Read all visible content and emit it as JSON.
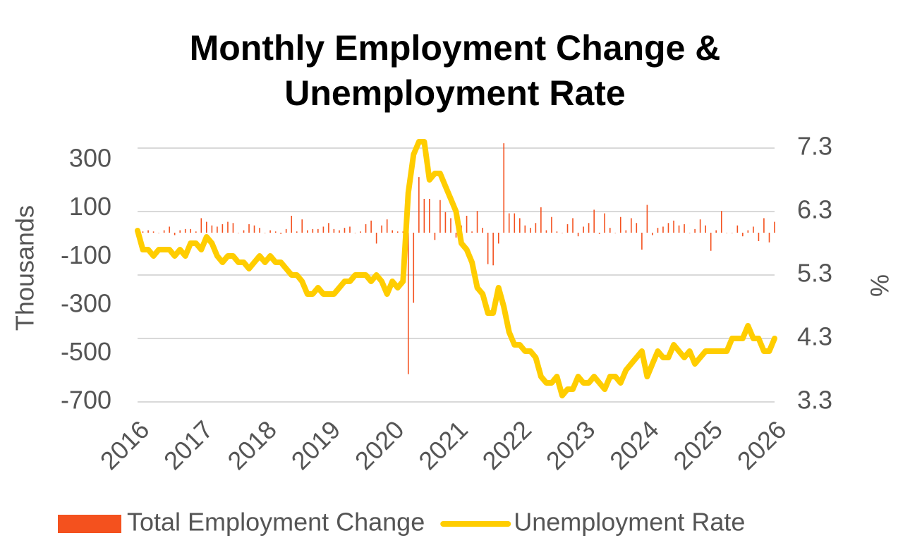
{
  "chart_data": {
    "type": "bar-line",
    "title": [
      "Monthly Employment Change &",
      "Unemployment Rate"
    ],
    "ylabel": "Thousands",
    "y2label": "%",
    "x": [
      2016,
      2016.083,
      2016.167,
      2016.25,
      2016.333,
      2016.417,
      2016.5,
      2016.583,
      2016.667,
      2016.75,
      2016.833,
      2016.917,
      2017,
      2017.083,
      2017.167,
      2017.25,
      2017.333,
      2017.417,
      2017.5,
      2017.583,
      2017.667,
      2017.75,
      2017.833,
      2017.917,
      2018,
      2018.083,
      2018.167,
      2018.25,
      2018.333,
      2018.417,
      2018.5,
      2018.583,
      2018.667,
      2018.75,
      2018.833,
      2018.917,
      2019,
      2019.083,
      2019.167,
      2019.25,
      2019.333,
      2019.417,
      2019.5,
      2019.583,
      2019.667,
      2019.75,
      2019.833,
      2019.917,
      2020,
      2020.083,
      2020.167,
      2020.25,
      2020.333,
      2020.417,
      2020.5,
      2020.583,
      2020.667,
      2020.75,
      2020.833,
      2020.917,
      2021,
      2021.083,
      2021.167,
      2021.25,
      2021.333,
      2021.417,
      2021.5,
      2021.583,
      2021.667,
      2021.75,
      2021.833,
      2021.917,
      2022,
      2022.083,
      2022.167,
      2022.25,
      2022.333,
      2022.417,
      2022.5,
      2022.583,
      2022.667,
      2022.75,
      2022.833,
      2022.917,
      2023,
      2023.083,
      2023.167,
      2023.25,
      2023.333,
      2023.417,
      2023.5,
      2023.583,
      2023.667,
      2023.75,
      2023.833,
      2023.917,
      2024,
      2024.083,
      2024.167,
      2024.25,
      2024.333,
      2024.417,
      2024.5,
      2024.583,
      2024.667,
      2024.75,
      2024.833,
      2024.917,
      2025,
      2025.083,
      2025.167,
      2025.25,
      2025.333,
      2025.417,
      2025.5,
      2025.583,
      2025.667,
      2025.75,
      2025.833,
      2025.917,
      2026
    ],
    "series": [
      {
        "name": "Total Employment Change",
        "color": "#f4511e",
        "type": "bar",
        "values": [
          15,
          5,
          10,
          5,
          0,
          10,
          25,
          -10,
          10,
          15,
          15,
          5,
          60,
          45,
          30,
          25,
          35,
          45,
          40,
          0,
          10,
          35,
          30,
          20,
          0,
          10,
          5,
          -5,
          15,
          70,
          5,
          55,
          10,
          15,
          15,
          25,
          40,
          15,
          10,
          20,
          25,
          0,
          5,
          35,
          50,
          -45,
          30,
          55,
          10,
          5,
          5,
          -585,
          -290,
          230,
          140,
          140,
          -30,
          135,
          85,
          60,
          -20,
          30,
          70,
          5,
          90,
          20,
          -130,
          -135,
          -45,
          370,
          80,
          80,
          60,
          30,
          20,
          40,
          105,
          10,
          65,
          5,
          0,
          35,
          60,
          -15,
          25,
          40,
          95,
          -5,
          80,
          20,
          0,
          65,
          10,
          60,
          40,
          -70,
          115,
          -10,
          20,
          25,
          40,
          50,
          30,
          35,
          0,
          15,
          55,
          30,
          -75,
          10,
          90,
          0,
          0,
          30,
          -15,
          10,
          25,
          -35,
          60,
          -40,
          45
        ]
      },
      {
        "name": "Unemployment Rate",
        "color": "#ffcd00",
        "type": "line",
        "axis": "y2",
        "values": [
          6.0,
          5.7,
          5.7,
          5.6,
          5.7,
          5.7,
          5.7,
          5.6,
          5.7,
          5.6,
          5.8,
          5.8,
          5.7,
          5.9,
          5.8,
          5.6,
          5.5,
          5.6,
          5.6,
          5.5,
          5.5,
          5.4,
          5.5,
          5.6,
          5.5,
          5.6,
          5.5,
          5.5,
          5.4,
          5.3,
          5.3,
          5.2,
          5.0,
          5.0,
          5.1,
          5.0,
          5.0,
          5.0,
          5.1,
          5.2,
          5.2,
          5.3,
          5.3,
          5.3,
          5.2,
          5.3,
          5.2,
          5.0,
          5.2,
          5.1,
          5.2,
          6.6,
          7.2,
          7.4,
          7.4,
          6.8,
          6.9,
          6.9,
          6.7,
          6.5,
          6.3,
          5.8,
          5.7,
          5.5,
          5.1,
          5.0,
          4.7,
          4.7,
          5.1,
          4.8,
          4.4,
          4.2,
          4.2,
          4.1,
          4.1,
          4.0,
          3.7,
          3.6,
          3.6,
          3.7,
          3.4,
          3.5,
          3.5,
          3.7,
          3.6,
          3.6,
          3.7,
          3.6,
          3.5,
          3.7,
          3.7,
          3.6,
          3.8,
          3.9,
          4.0,
          4.1,
          3.7,
          3.9,
          4.1,
          4.0,
          4.0,
          4.2,
          4.1,
          4.0,
          4.1,
          3.9,
          4.0,
          4.1,
          4.1,
          4.1,
          4.1,
          4.1,
          4.3,
          4.3,
          4.3,
          4.5,
          4.3,
          4.3,
          4.1,
          4.1,
          4.3
        ]
      }
    ],
    "xlim": [
      2016,
      2026
    ],
    "xticks": [
      2016,
      2017,
      2018,
      2019,
      2020,
      2021,
      2022,
      2023,
      2024,
      2025,
      2026
    ],
    "ylim": [
      -700,
      350
    ],
    "yticks": [
      300,
      100,
      -100,
      -300,
      -500,
      -700
    ],
    "y2lim": [
      3.3,
      7.3
    ],
    "y2ticks": [
      7.3,
      6.3,
      5.3,
      4.3,
      3.3
    ],
    "grid": true,
    "legend": "bottom"
  }
}
